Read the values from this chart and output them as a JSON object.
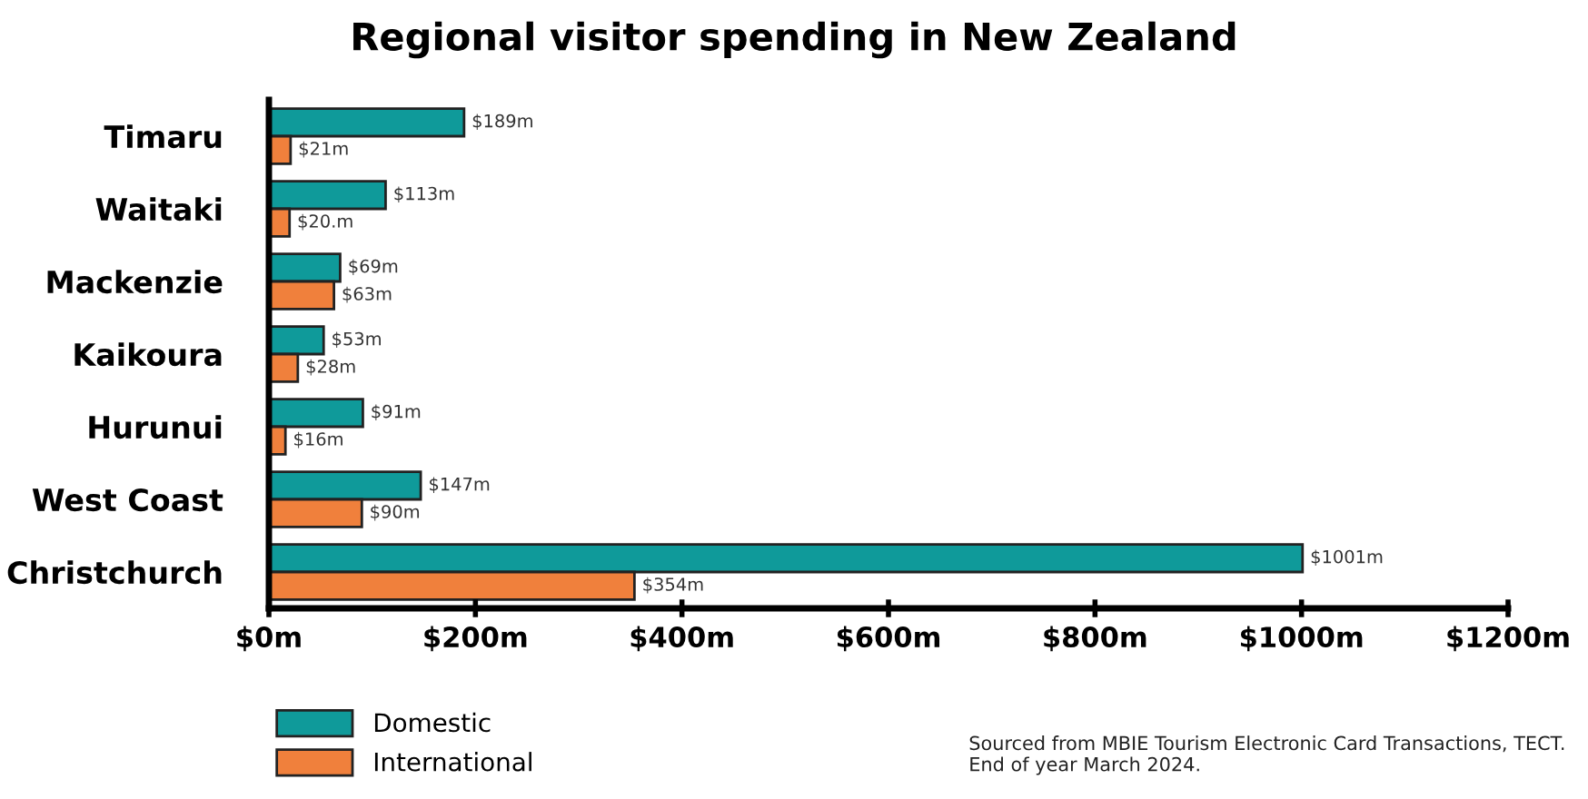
{
  "chart_data": {
    "type": "bar",
    "orientation": "horizontal",
    "title": "Regional visitor spending in New Zealand",
    "categories": [
      "Timaru",
      "Waitaki",
      "Mackenzie",
      "Kaikoura",
      "Hurunui",
      "West Coast",
      "Christchurch"
    ],
    "series": [
      {
        "name": "Domestic",
        "color": "#0f9a9a",
        "values": [
          189,
          113,
          69,
          53,
          91,
          147,
          1001
        ],
        "value_labels": [
          "$189m",
          "$113m",
          "$69m",
          "$53m",
          "$91m",
          "$147m",
          "$1001m"
        ]
      },
      {
        "name": "International",
        "color": "#f0803c",
        "values": [
          21,
          20,
          63,
          28,
          16,
          90,
          354
        ],
        "value_labels": [
          "$21m",
          "$20.m",
          "$63m",
          "$28m",
          "$16m",
          "$90m",
          "$354m"
        ]
      }
    ],
    "xlim": [
      0,
      1200
    ],
    "xticks": [
      {
        "value": 0,
        "label": "$0m"
      },
      {
        "value": 200,
        "label": "$200m"
      },
      {
        "value": 400,
        "label": "$400m"
      },
      {
        "value": 600,
        "label": "$600m"
      },
      {
        "value": 800,
        "label": "$800m"
      },
      {
        "value": 1000,
        "label": "$1000m"
      },
      {
        "value": 1200,
        "label": "$1200m"
      }
    ],
    "grid": false,
    "legend": "bottom left",
    "annotations": [
      "Sourced from MBIE Tourism Electronic Card Transactions, TECT.\nEnd of year March 2024."
    ]
  }
}
